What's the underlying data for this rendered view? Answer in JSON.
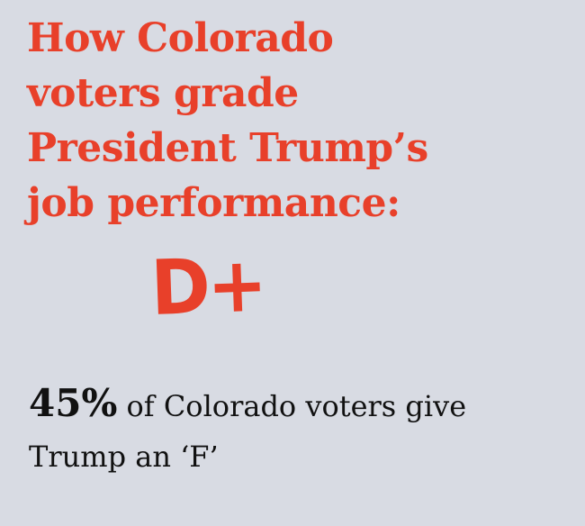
{
  "header": {
    "title_lines": [
      "How Colorado",
      "voters grade",
      "President Trump’s",
      "job performance:"
    ]
  },
  "grade": "D+",
  "stat": {
    "figure": "45%",
    "line1": "of Colorado voters give",
    "line2": "Trump an ‘F’"
  }
}
